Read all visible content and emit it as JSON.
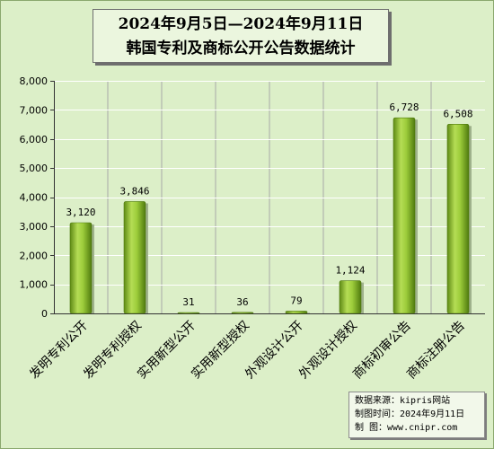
{
  "title": {
    "line1": "2024年9月5日—2024年9月11日",
    "line2": "韩国专利及商标公开公告数据统计"
  },
  "chart_data": {
    "type": "bar",
    "categories": [
      "发明专利公开",
      "发明专利授权",
      "实用新型公开",
      "实用新型授权",
      "外观设计公开",
      "外观设计授权",
      "商标初审公告",
      "商标注册公告"
    ],
    "values": [
      3120,
      3846,
      31,
      36,
      79,
      1124,
      6728,
      6508
    ],
    "value_labels": [
      "3,120",
      "3,846",
      "31",
      "36",
      "79",
      "1,124",
      "6,728",
      "6,508"
    ],
    "ylim": [
      0,
      8000
    ],
    "yticks": [
      0,
      1000,
      2000,
      3000,
      4000,
      5000,
      6000,
      7000,
      8000
    ],
    "ytick_labels": [
      "0",
      "1,000",
      "2,000",
      "3,000",
      "4,000",
      "5,000",
      "6,000",
      "7,000",
      "8,000"
    ],
    "grid": true,
    "legend": "none",
    "bar_color": "#8bbf2c"
  },
  "source": {
    "line1": "数据来源：kipris网站",
    "line2": "制图时间：2024年9月11日",
    "line3": "制    图：www.cnipr.com"
  }
}
